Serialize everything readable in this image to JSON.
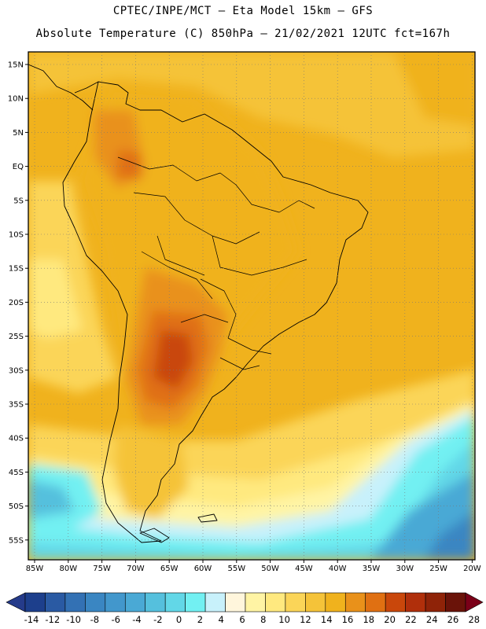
{
  "title": {
    "line1": "CPTEC/INPE/MCT —  Eta Model 15km — GFS",
    "line2": "Absolute Temperature (C) 850hPa — 21/02/2021 12UTC fct=167h"
  },
  "axes": {
    "lat_labels": [
      "15N",
      "10N",
      "5N",
      "EQ",
      "5S",
      "10S",
      "15S",
      "20S",
      "25S",
      "30S",
      "35S",
      "40S",
      "45S",
      "50S",
      "55S"
    ],
    "lon_labels": [
      "85W",
      "80W",
      "75W",
      "70W",
      "65W",
      "60W",
      "55W",
      "50W",
      "45W",
      "40W",
      "35W",
      "30W",
      "25W",
      "20W"
    ]
  },
  "colorbar": {
    "labels": [
      "-14",
      "-12",
      "-10",
      "-8",
      "-6",
      "-4",
      "-2",
      "0",
      "2",
      "4",
      "6",
      "8",
      "10",
      "12",
      "14",
      "16",
      "18",
      "20",
      "22",
      "24",
      "26",
      "28"
    ],
    "colors": [
      "#1d3f8c",
      "#2a5aa3",
      "#3371b4",
      "#3a86c2",
      "#4297cc",
      "#4aa9d5",
      "#55c0dd",
      "#62d7e7",
      "#72f0f2",
      "#c8f1fb",
      "#fff6dc",
      "#fff4a4",
      "#ffe97f",
      "#fbd558",
      "#f5c339",
      "#f0b21d",
      "#e9911a",
      "#e07012",
      "#c9470b",
      "#b02f0b",
      "#8f2308",
      "#6a1309"
    ],
    "under_color": "#253b8a",
    "over_color": "#7a0018"
  }
}
